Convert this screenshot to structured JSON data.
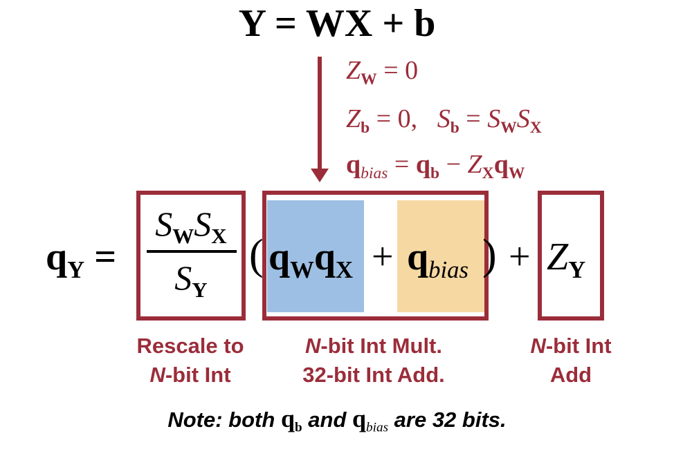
{
  "equation": {
    "main": "Y = WX + b"
  },
  "conditions": {
    "line1": {
      "z": "Z",
      "sub": "W",
      "rest": " = 0"
    },
    "line2": {
      "z": "Z",
      "sub": "b",
      "mid": " = 0,   ",
      "s": "S",
      "s_sub": "b",
      "eq": " = ",
      "s1": "S",
      "s1_sub": "W",
      "s2": "S",
      "s2_sub": "X"
    },
    "line3": {
      "q": "q",
      "q_sub": "bias",
      "eq": " = ",
      "q2": "q",
      "q2_sub": "b",
      "minus": " − ",
      "z": "Z",
      "z_sub": "X",
      "q3": "q",
      "q3_sub": "W"
    }
  },
  "expression": {
    "lhs_q": "q",
    "lhs_sub": "Y",
    "lhs_eq": " =",
    "num_s1": "S",
    "num_s1_sub": "W",
    "num_s2": "S",
    "num_s2_sub": "X",
    "den_s": "S",
    "den_sub": "Y",
    "paren_open": "(",
    "paren_close": ")",
    "qw": "q",
    "qw_sub": "W",
    "qx": "q",
    "qx_sub": "X",
    "plus": "+",
    "qbias": "q",
    "qbias_sub": "bias",
    "plus2": "+",
    "zy": "Z",
    "zy_sub": "Y"
  },
  "captions": {
    "rescale": {
      "line1": "Rescale to",
      "line2_italic": "N",
      "line2_rest": "-bit Int"
    },
    "mult": {
      "line1_italic": "N",
      "line1_rest": "-bit Int Mult.",
      "line2": "32-bit Int Add."
    },
    "add": {
      "line1_italic": "N",
      "line1_rest": "-bit Int",
      "line2": "Add"
    }
  },
  "note": {
    "prefix": "Note: both ",
    "q1": "q",
    "q1_sub": "b",
    "and": " and ",
    "q2": "q",
    "q2_sub": "bias",
    "suffix": " are 32 bits."
  },
  "colors": {
    "accent": "#9b2d3a",
    "blue_fill": "#9dbfe3",
    "orange_fill": "#f6d8a2"
  }
}
